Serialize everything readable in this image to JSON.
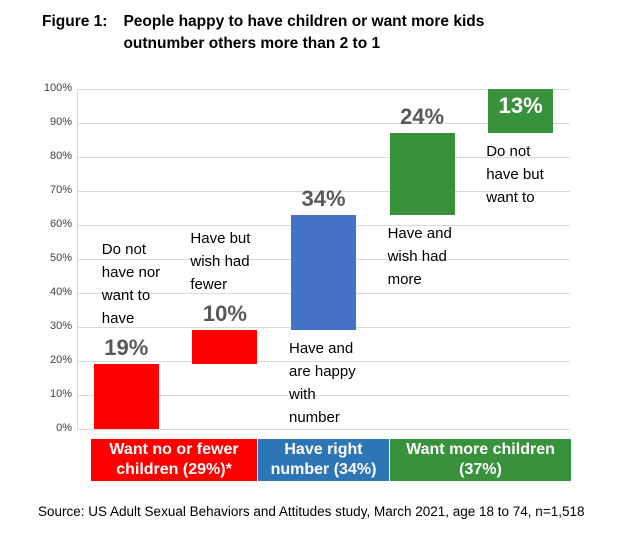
{
  "header": {
    "figure_label": "Figure 1:",
    "title_lines": [
      "People happy to have children or want more kids",
      "outnumber others more than 2 to 1"
    ]
  },
  "footer": {
    "source": "Source: US Adult Sexual Behaviors and Attitudes study, March 2021, age 18 to 74, n=1,518"
  },
  "colors": {
    "red": "#FF0000",
    "bar_blue": "#4472C4",
    "band_blue": "#2E75B6",
    "green": "#39913C",
    "gridline": "#D9D9D9",
    "axis_text": "#404040",
    "value_label": "#595959"
  },
  "chart_data": {
    "type": "bar",
    "subtype": "waterfall",
    "title": "People happy to have children or want more kids outnumber others more than 2 to 1",
    "xlabel": "",
    "ylabel": "",
    "ylim": [
      0,
      100
    ],
    "grid": true,
    "legend": "none",
    "yticks": [
      {
        "value": 0,
        "label": "0%"
      },
      {
        "value": 10,
        "label": "10%"
      },
      {
        "value": 20,
        "label": "20%"
      },
      {
        "value": 30,
        "label": "30%"
      },
      {
        "value": 40,
        "label": "40%"
      },
      {
        "value": 50,
        "label": "50%"
      },
      {
        "value": 60,
        "label": "60%"
      },
      {
        "value": 70,
        "label": "70%"
      },
      {
        "value": 80,
        "label": "80%"
      },
      {
        "value": 90,
        "label": "90%"
      },
      {
        "value": 100,
        "label": "100%"
      }
    ],
    "segments": [
      {
        "name": "do-not-have-nor-want",
        "value": 19,
        "start": 0,
        "end": 19,
        "value_label": "19%",
        "value_label_side": "above",
        "color": "#FF0000",
        "annotation": "Do not have nor want to have",
        "annotation_lines": [
          "Do not",
          "have nor",
          "want to",
          "have"
        ],
        "annotation_side": "above"
      },
      {
        "name": "have-but-wish-had-fewer",
        "value": 10,
        "start": 19,
        "end": 29,
        "value_label": "10%",
        "value_label_side": "above",
        "color": "#FF0000",
        "annotation": "Have but wish had fewer",
        "annotation_lines": [
          "Have but",
          "wish had",
          "fewer"
        ],
        "annotation_side": "above"
      },
      {
        "name": "have-and-happy-with-number",
        "value": 34,
        "start": 29,
        "end": 63,
        "value_label": "34%",
        "value_label_side": "above",
        "color": "#4472C4",
        "annotation": "Have and are happy with number",
        "annotation_lines": [
          "Have and",
          "are happy",
          "with",
          "number"
        ],
        "annotation_side": "below"
      },
      {
        "name": "have-and-wish-had-more",
        "value": 24,
        "start": 63,
        "end": 87,
        "value_label": "24%",
        "value_label_side": "above",
        "color": "#39913C",
        "annotation": "Have and wish had more",
        "annotation_lines": [
          "Have and",
          "wish had",
          "more"
        ],
        "annotation_side": "below"
      },
      {
        "name": "do-not-have-but-want-to",
        "value": 13,
        "start": 87,
        "end": 100,
        "value_label": "13%",
        "value_label_side": "inside",
        "color": "#39913C",
        "annotation": "Do not have but want to",
        "annotation_lines": [
          "Do not",
          "have but",
          "want to"
        ],
        "annotation_side": "below"
      }
    ],
    "category_bands": [
      {
        "name": "want-no-or-fewer-children",
        "label": "Want no or fewer children (29%)*",
        "label_lines": [
          "Want no or fewer",
          "children (29%)*"
        ],
        "color": "#FF0000"
      },
      {
        "name": "have-right-number",
        "label": "Have right number (34%)",
        "label_lines": [
          "Have right",
          "number (34%)"
        ],
        "color": "#2E75B6"
      },
      {
        "name": "want-more-children",
        "label": "Want more children (37%)",
        "label_lines": [
          "Want more children",
          "(37%)"
        ],
        "color": "#39913C"
      }
    ]
  }
}
